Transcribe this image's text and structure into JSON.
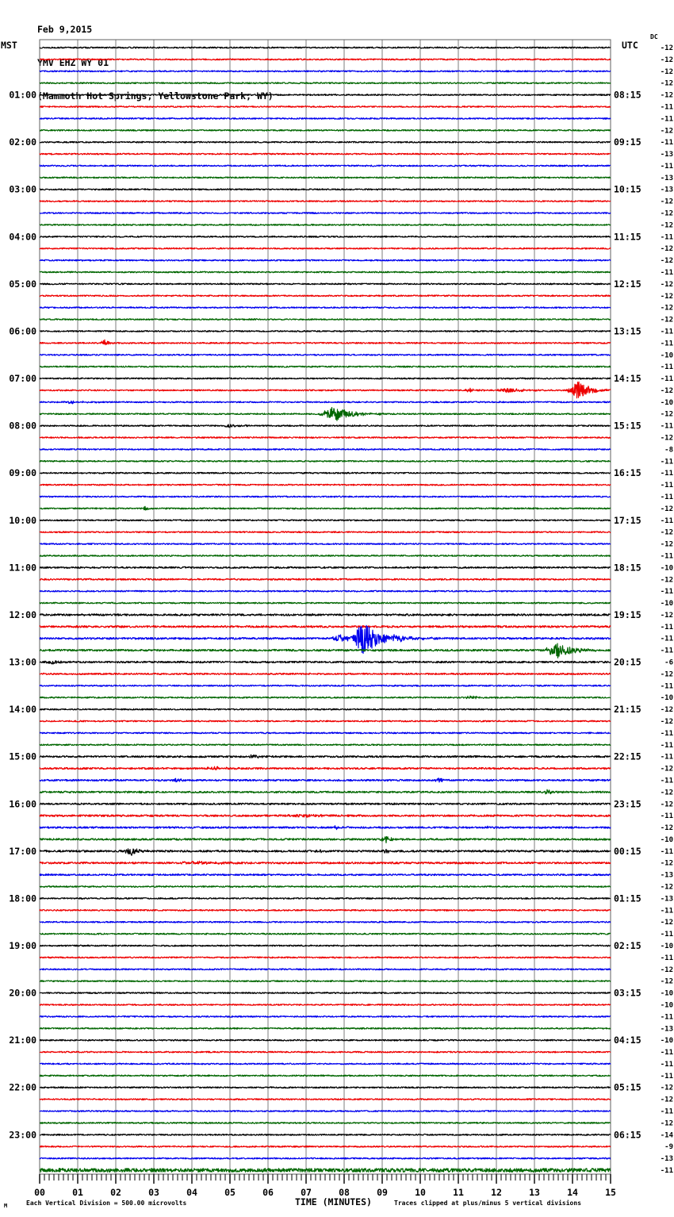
{
  "title": {
    "date": "Feb 9,2015",
    "station": "YMV EHZ WY 01",
    "location": "(Mammoth Hot Springs, Yellowstone Park, WY)"
  },
  "axes": {
    "left_header": "MST",
    "right_header": "UTC",
    "dc_header": "DC",
    "x_title": "TIME (MINUTES)",
    "x_ticks": [
      "00",
      "01",
      "02",
      "03",
      "04",
      "05",
      "06",
      "07",
      "08",
      "09",
      "10",
      "11",
      "12",
      "13",
      "14",
      "15"
    ]
  },
  "footer": {
    "watermark": "M",
    "left_note": "Each Vertical Division =  500.00 microvolts",
    "right_note": "Traces clipped at plus/minus 5 vertical divisions"
  },
  "chart_data": {
    "type": "line",
    "description": "24-hour helicorder (webicorder) record; 96 traces of 15 minutes each, cycling colors black/red/blue/green; x axis 0-15 minutes; left labels MST hours, right labels UTC, far-right column per-trace DC offset",
    "x_range_minutes": [
      0,
      15
    ],
    "minutes_per_row": 15,
    "rows": 96,
    "grid": true,
    "trace_colors": [
      "#000000",
      "#ee0000",
      "#0000ee",
      "#006600"
    ],
    "grid_color": "#7d7d7d",
    "left_labels_mst": [
      "01:00",
      "02:00",
      "03:00",
      "04:00",
      "05:00",
      "06:00",
      "07:00",
      "08:00",
      "09:00",
      "10:00",
      "11:00",
      "12:00",
      "13:00",
      "14:00",
      "15:00",
      "16:00",
      "17:00",
      "18:00",
      "19:00",
      "20:00",
      "21:00",
      "22:00",
      "23:00"
    ],
    "right_labels_utc": [
      "08:15",
      "09:15",
      "10:15",
      "11:15",
      "12:15",
      "13:15",
      "14:15",
      "15:15",
      "16:15",
      "17:15",
      "18:15",
      "19:15",
      "20:15",
      "21:15",
      "22:15",
      "23:15",
      "00:15",
      "01:15",
      "02:15",
      "03:15",
      "04:15",
      "05:15",
      "06:15"
    ],
    "dc_offsets": [
      -12,
      -12,
      -12,
      -12,
      -12,
      -11,
      -11,
      -12,
      -11,
      -13,
      -11,
      -13,
      -13,
      -12,
      -12,
      -12,
      -11,
      -12,
      -12,
      -11,
      -12,
      -12,
      -12,
      -12,
      -11,
      -11,
      -10,
      -11,
      -11,
      -12,
      -10,
      -12,
      -11,
      -12,
      -8,
      -11,
      -11,
      -11,
      -11,
      -12,
      -11,
      -12,
      -12,
      -11,
      -10,
      -12,
      -11,
      -10,
      -12,
      -11,
      -11,
      -11,
      -6,
      -12,
      -11,
      -10,
      -12,
      -12,
      -11,
      -11,
      -11,
      -12,
      -11,
      -12,
      -12,
      -11,
      -12,
      -10,
      -11,
      -12,
      -13,
      -12,
      -13,
      -11,
      -12,
      -11,
      -10,
      -11,
      -12,
      -12,
      -10,
      -10,
      -11,
      -13,
      -10,
      -11,
      -11,
      -11,
      -12,
      -12,
      -11,
      -12,
      -14,
      -9,
      -13,
      -11
    ],
    "events": [
      {
        "row": 25,
        "t": 1.7,
        "dur": 0.35,
        "amp": 4
      },
      {
        "row": 29,
        "t": 11.3,
        "dur": 0.6,
        "amp": 2.5
      },
      {
        "row": 29,
        "t": 12.3,
        "dur": 1.6,
        "amp": 2.5
      },
      {
        "row": 29,
        "t": 14.15,
        "dur": 1.15,
        "amp": 11
      },
      {
        "row": 30,
        "t": 0.9,
        "dur": 1.5,
        "amp": 1.5
      },
      {
        "row": 31,
        "t": 7.75,
        "dur": 1.5,
        "amp": 10
      },
      {
        "row": 32,
        "t": 5.0,
        "dur": 0.9,
        "amp": 2
      },
      {
        "row": 39,
        "t": 2.78,
        "dur": 0.25,
        "amp": 3
      },
      {
        "row": 50,
        "t": 7.9,
        "dur": 0.9,
        "amp": 5
      },
      {
        "row": 50,
        "t": 8.5,
        "dur": 1.1,
        "amp": 26
      },
      {
        "row": 50,
        "t": 9.4,
        "dur": 1.8,
        "amp": 3
      },
      {
        "row": 51,
        "t": 13.6,
        "dur": 1.2,
        "amp": 10
      },
      {
        "row": 52,
        "t": 0.3,
        "dur": 0.6,
        "amp": 3
      },
      {
        "row": 55,
        "t": 3.95,
        "dur": 0.45,
        "amp": 2
      },
      {
        "row": 55,
        "t": 11.4,
        "dur": 0.9,
        "amp": 2.2
      },
      {
        "row": 60,
        "t": 5.6,
        "dur": 0.55,
        "amp": 3
      },
      {
        "row": 61,
        "t": 4.6,
        "dur": 0.9,
        "amp": 2.2
      },
      {
        "row": 62,
        "t": 3.6,
        "dur": 0.4,
        "amp": 2.5
      },
      {
        "row": 62,
        "t": 10.5,
        "dur": 0.4,
        "amp": 2.5
      },
      {
        "row": 63,
        "t": 13.35,
        "dur": 0.45,
        "amp": 3.5
      },
      {
        "row": 65,
        "t": 6.9,
        "dur": 1.8,
        "amp": 1.8
      },
      {
        "row": 66,
        "t": 7.8,
        "dur": 0.5,
        "amp": 2.2
      },
      {
        "row": 66,
        "t": 11.8,
        "dur": 0.5,
        "amp": 2.2
      },
      {
        "row": 67,
        "t": 9.1,
        "dur": 0.55,
        "amp": 4.5
      },
      {
        "row": 68,
        "t": 2.4,
        "dur": 0.7,
        "amp": 5
      },
      {
        "row": 68,
        "t": 7.3,
        "dur": 0.4,
        "amp": 2.5
      },
      {
        "row": 68,
        "t": 9.1,
        "dur": 0.35,
        "amp": 2.5
      },
      {
        "row": 69,
        "t": 4.2,
        "dur": 3.0,
        "amp": 1.6
      }
    ],
    "noise": {
      "default": 0.85,
      "rows": {
        "44": 1.0,
        "45": 1.0,
        "48": 1.2,
        "49": 1.2,
        "50": 1.2,
        "51": 1.2,
        "52": 1.1,
        "53": 1.0,
        "60": 1.1,
        "61": 1.1,
        "62": 1.1,
        "63": 1.1,
        "64": 1.05,
        "65": 1.15,
        "66": 1.1,
        "67": 1.15,
        "68": 1.2,
        "69": 1.15,
        "70": 1.0,
        "95": 2.3
      }
    }
  }
}
